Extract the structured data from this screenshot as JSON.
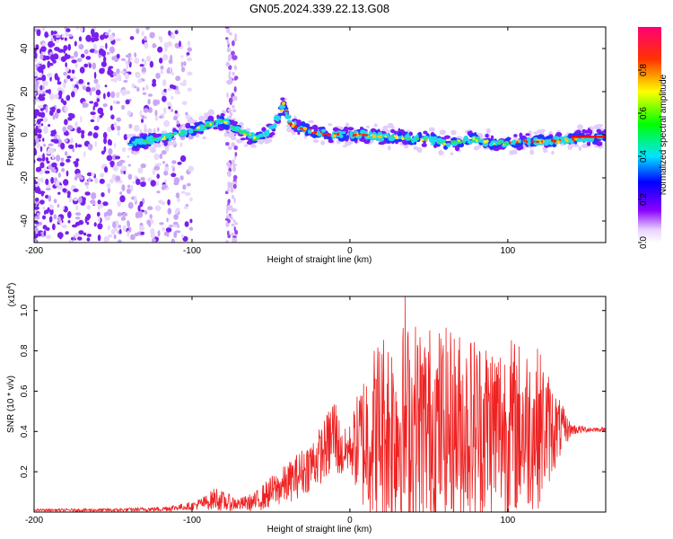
{
  "title": "GN05.2024.339.22.13.G08",
  "colors": {
    "snr_line": "#ee2222",
    "ridge_low": "#6a00ff",
    "ridge_high": "#ff0000",
    "axis": "#000000"
  },
  "chart_data": [
    {
      "type": "heatmap",
      "name": "spectrogram",
      "xlabel": "Height of straight line (km)",
      "ylabel": "Frequency (Hz)",
      "xlim": [
        -200,
        162
      ],
      "ylim": [
        -50,
        50
      ],
      "x_ticks": [
        -200,
        -100,
        0,
        100
      ],
      "y_ticks": [
        -40,
        -20,
        0,
        20,
        40
      ],
      "x_tick_labels": [
        "-200",
        "-100",
        "0",
        "100"
      ],
      "y_tick_labels": [
        "-40",
        "-20",
        "0",
        "20",
        "40"
      ],
      "ridge": {
        "x": [
          -140,
          -130,
          -120,
          -110,
          -100,
          -92,
          -85,
          -80,
          -75,
          -70,
          -65,
          -60,
          -55,
          -50,
          -45,
          -42,
          -38,
          -30,
          -20,
          -10,
          0,
          10,
          20,
          30,
          40,
          50,
          60,
          70,
          80,
          90,
          100,
          110,
          120,
          130,
          140,
          150,
          162
        ],
        "y": [
          -4,
          -3,
          -2,
          0,
          2,
          4,
          6,
          6,
          4,
          2,
          0,
          -2,
          0,
          2,
          8,
          15,
          5,
          3,
          1,
          0,
          0,
          0,
          -1,
          -1,
          -2,
          -2,
          -4,
          -3,
          -2,
          -4,
          -4,
          -3,
          -3,
          -3,
          -2,
          -1,
          -1
        ]
      },
      "colorbar": {
        "label": "Normalized spectral amplitude",
        "range": [
          0,
          1
        ],
        "ticks": [
          0.0,
          0.2,
          0.4,
          0.6,
          0.8
        ],
        "tick_labels": [
          "0.0",
          "0.2",
          "0.4",
          "0.6",
          "0.8"
        ]
      }
    },
    {
      "type": "line",
      "name": "snr",
      "xlabel": "Height of straight line (km)",
      "ylabel": "SNR (10 * v/v)",
      "yscale_label": "(x10",
      "yscale_exp": "4",
      "yscale_close": ")",
      "xlim": [
        -200,
        162
      ],
      "ylim": [
        0,
        1.07
      ],
      "x_ticks": [
        -200,
        -100,
        0,
        100
      ],
      "y_ticks": [
        0.2,
        0.4,
        0.6,
        0.8,
        1.0
      ],
      "x_tick_labels": [
        "-200",
        "-100",
        "0",
        "100"
      ],
      "y_tick_labels": [
        "0.2",
        "0.4",
        "0.6",
        "0.8",
        "1.0"
      ],
      "envelope": {
        "x": [
          -200,
          -150,
          -120,
          -100,
          -90,
          -85,
          -80,
          -70,
          -60,
          -50,
          -40,
          -30,
          -20,
          -15,
          -12,
          -10,
          -5,
          0,
          10,
          20,
          40,
          60,
          80,
          100,
          120,
          130,
          140,
          150,
          162
        ],
        "base": [
          0.01,
          0.01,
          0.015,
          0.03,
          0.05,
          0.07,
          0.05,
          0.04,
          0.05,
          0.1,
          0.14,
          0.2,
          0.27,
          0.32,
          0.36,
          0.4,
          0.28,
          0.32,
          0.36,
          0.42,
          0.42,
          0.42,
          0.42,
          0.42,
          0.42,
          0.41,
          0.41,
          0.41,
          0.41
        ],
        "amp": [
          0.005,
          0.008,
          0.012,
          0.02,
          0.04,
          0.06,
          0.05,
          0.03,
          0.05,
          0.08,
          0.1,
          0.12,
          0.14,
          0.16,
          0.2,
          0.22,
          0.12,
          0.12,
          0.4,
          0.5,
          0.55,
          0.5,
          0.48,
          0.46,
          0.4,
          0.2,
          0.03,
          0.015,
          0.01
        ]
      },
      "peak": {
        "x": 35,
        "y": 1.07
      }
    }
  ]
}
